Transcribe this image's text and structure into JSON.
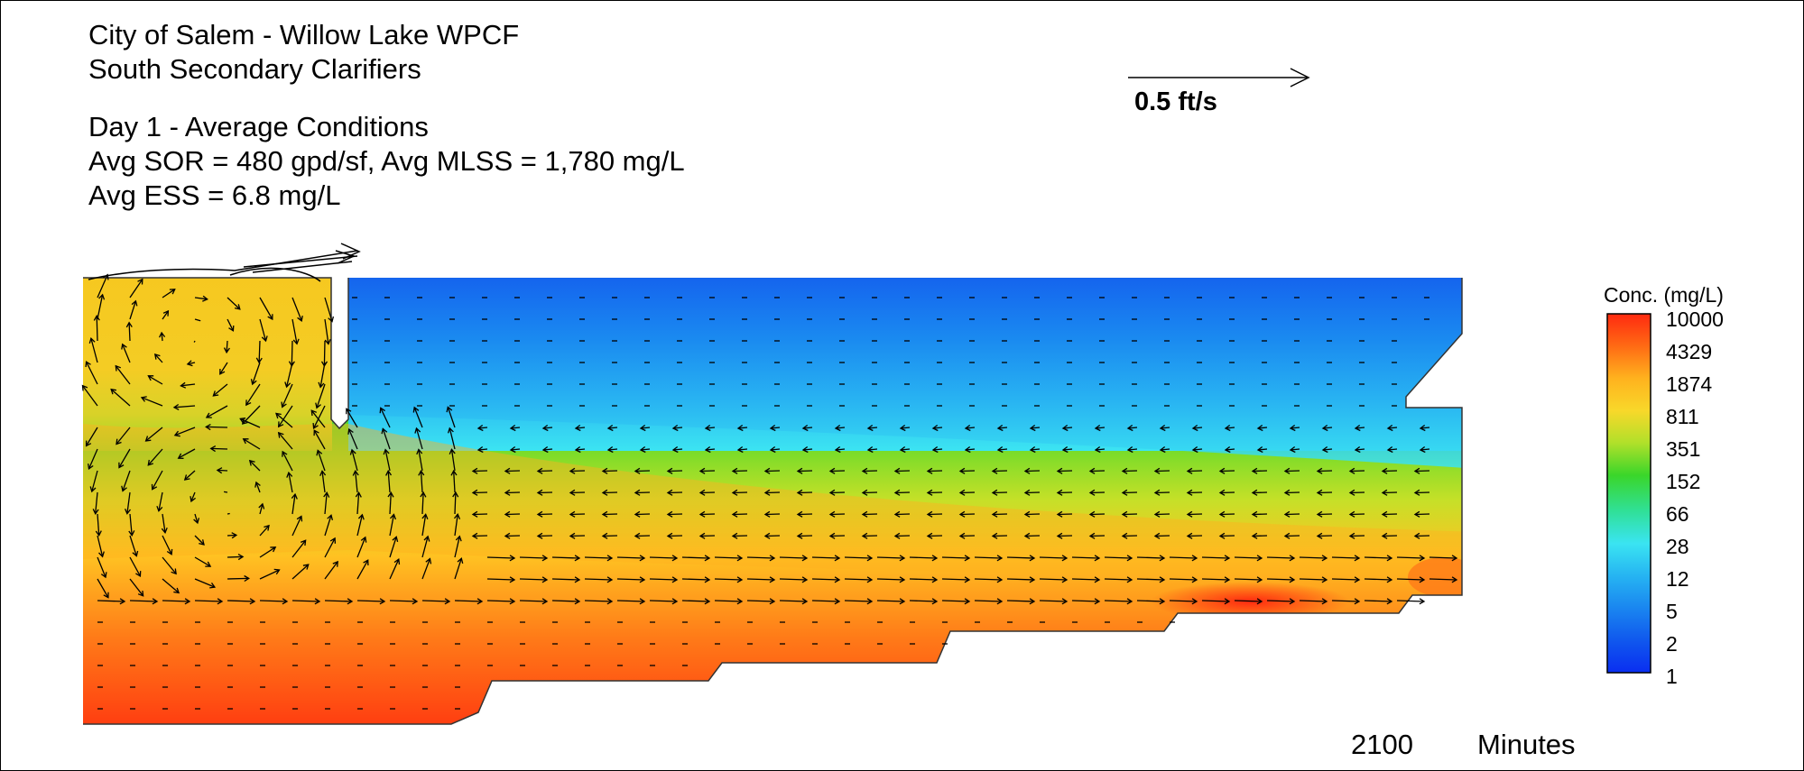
{
  "title": {
    "line1": "City of Salem - Willow Lake WPCF",
    "line2": "South Secondary Clarifiers",
    "line3": "Day 1 - Average Conditions",
    "line4": "Avg SOR = 480 gpd/sf, Avg MLSS = 1,780 mg/L",
    "line5": "Avg ESS = 6.8 mg/L"
  },
  "velocity_scale": {
    "label": "0.5 ft/s"
  },
  "legend": {
    "title": "Conc. (mg/L)",
    "levels": [
      "10000",
      "4329",
      "1874",
      "811",
      "351",
      "152",
      "66",
      "28",
      "12",
      "5",
      "2",
      "1"
    ],
    "colors": [
      "#ff2a10",
      "#ff6a14",
      "#ffb21e",
      "#f8d82a",
      "#b0e02a",
      "#3ad62a",
      "#30e098",
      "#3ae4f2",
      "#26b4f2",
      "#1a86f0",
      "#1058ee",
      "#0a2ef0"
    ]
  },
  "time": {
    "value": "2100",
    "unit": "Minutes"
  },
  "colors": {
    "frame": "#000000",
    "background": "#ffffff"
  }
}
